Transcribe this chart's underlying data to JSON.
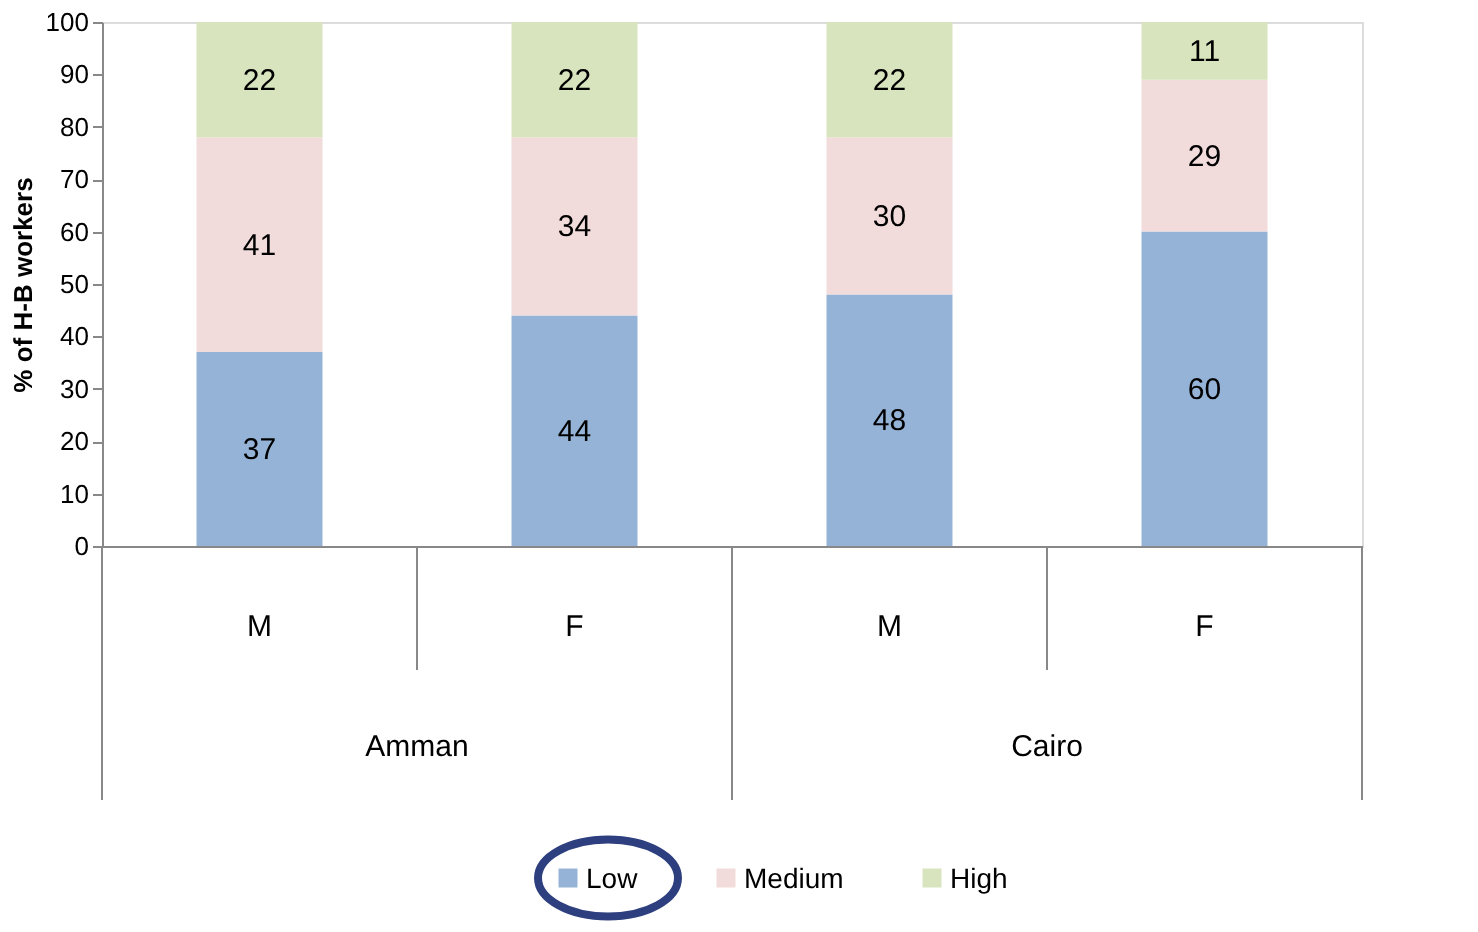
{
  "chart_data": {
    "type": "bar",
    "stacked": true,
    "ylabel": "% of H-B workers",
    "categories": [
      "M",
      "F",
      "M",
      "F"
    ],
    "series": [
      {
        "name": "Low",
        "color": "#95b3d7",
        "values": [
          37,
          44,
          48,
          60
        ]
      },
      {
        "name": "Medium",
        "color": "#f2dcdb",
        "values": [
          41,
          34,
          30,
          29
        ]
      },
      {
        "name": "High",
        "color": "#d7e4bd",
        "values": [
          22,
          22,
          22,
          11
        ]
      }
    ],
    "annotations": [
      "Amman",
      "Cairo"
    ],
    "ylim": [
      0,
      100
    ],
    "yticks": [
      0,
      10,
      20,
      30,
      40,
      50,
      60,
      70,
      80,
      90,
      100
    ],
    "grid": false,
    "data_labels": true,
    "legend": "bottom"
  }
}
